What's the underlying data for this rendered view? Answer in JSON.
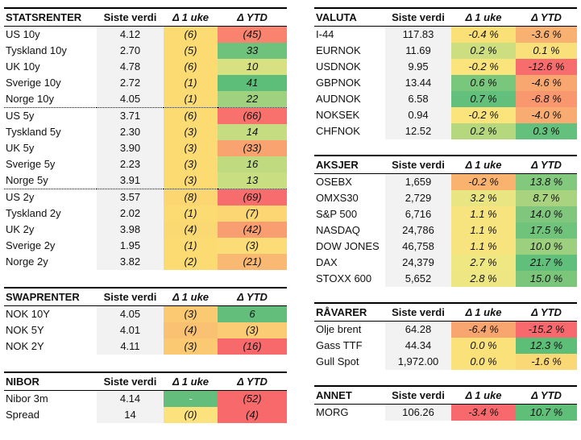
{
  "columns_header": {
    "value": "Siste verdi",
    "week": "Δ 1 uke",
    "ytd": "Δ YTD"
  },
  "gray_value_bg": "#F2F2F2",
  "palette": {
    "red": "#F8696B",
    "yellow": "#FFEB84",
    "green": "#63BE7B"
  },
  "tables": [
    {
      "id": "statsrenter",
      "title": "STATSRENTER",
      "column": "left",
      "rows": [
        {
          "label": "US 10y",
          "value": "4.12",
          "week": "(6)",
          "week_bg": "#FCDB72",
          "ytd": "(45)",
          "ytd_bg": "#F9836E"
        },
        {
          "label": "Tyskland 10y",
          "value": "2.70",
          "week": "(5)",
          "week_bg": "#FCDB72",
          "ytd": "33",
          "ytd_bg": "#6EC27B"
        },
        {
          "label": "UK 10y",
          "value": "4.78",
          "week": "(6)",
          "week_bg": "#FCDB72",
          "ytd": "10",
          "ytd_bg": "#D8E182"
        },
        {
          "label": "Sverige 10y",
          "value": "2.72",
          "week": "(1)",
          "week_bg": "#FCDB72",
          "ytd": "41",
          "ytd_bg": "#5CBE79"
        },
        {
          "label": "Norge 10y",
          "value": "4.05",
          "week": "(1)",
          "week_bg": "#FCDB72",
          "ytd": "22",
          "ytd_bg": "#A0D17E",
          "sep_after": true
        },
        {
          "label": "US 5y",
          "value": "3.71",
          "week": "(6)",
          "week_bg": "#FCDB72",
          "ytd": "(66)",
          "ytd_bg": "#F8716D"
        },
        {
          "label": "Tyskland 5y",
          "value": "2.30",
          "week": "(3)",
          "week_bg": "#FCDB72",
          "ytd": "14",
          "ytd_bg": "#C6DC80"
        },
        {
          "label": "UK 5y",
          "value": "3.90",
          "week": "(3)",
          "week_bg": "#FCDB72",
          "ytd": "(33)",
          "ytd_bg": "#F9A470"
        },
        {
          "label": "Sverige 5y",
          "value": "2.23",
          "week": "(3)",
          "week_bg": "#FCDB72",
          "ytd": "16",
          "ytd_bg": "#C0DA7F"
        },
        {
          "label": "Norge 5y",
          "value": "3.91",
          "week": "(3)",
          "week_bg": "#FCDB72",
          "ytd": "13",
          "ytd_bg": "#C9DD81",
          "sep_after": true
        },
        {
          "label": "US 2y",
          "value": "3.57",
          "week": "(8)",
          "week_bg": "#FBD671",
          "ytd": "(69)",
          "ytd_bg": "#F76C6C"
        },
        {
          "label": "Tyskland 2y",
          "value": "2.02",
          "week": "(1)",
          "week_bg": "#FCDB72",
          "ytd": "(7)",
          "ytd_bg": "#FBD673"
        },
        {
          "label": "UK 2y",
          "value": "3.98",
          "week": "(4)",
          "week_bg": "#FBD972",
          "ytd": "(42)",
          "ytd_bg": "#F99E70"
        },
        {
          "label": "Sverige 2y",
          "value": "1.95",
          "week": "(1)",
          "week_bg": "#FCDB72",
          "ytd": "(3)",
          "ytd_bg": "#FBDC76"
        },
        {
          "label": "Norge 2y",
          "value": "3.82",
          "week": "(2)",
          "week_bg": "#FCDB72",
          "ytd": "(21)",
          "ytd_bg": "#FAB973"
        }
      ]
    },
    {
      "id": "swaprenter",
      "title": "SWAPRENTER",
      "column": "left",
      "rows": [
        {
          "label": "NOK 10Y",
          "value": "4.05",
          "week": "(3)",
          "week_bg": "#FBC972",
          "ytd": "6",
          "ytd_bg": "#63BE7B"
        },
        {
          "label": "NOK 5Y",
          "value": "4.01",
          "week": "(4)",
          "week_bg": "#FAC172",
          "ytd": "(3)",
          "ytd_bg": "#FBCC74"
        },
        {
          "label": "NOK 2Y",
          "value": "4.11",
          "week": "(3)",
          "week_bg": "#FBC972",
          "ytd": "(16)",
          "ytd_bg": "#F8696B"
        }
      ]
    },
    {
      "id": "nibor",
      "title": "NIBOR",
      "column": "left",
      "rows": [
        {
          "label": "Nibor 3m",
          "value": "4.14",
          "week": "-",
          "week_bg": "#63BE7B",
          "week_fg": "#FFFFFF",
          "ytd": "(52)",
          "ytd_bg": "#F8696B"
        },
        {
          "label": "Spread",
          "value": "14",
          "week": "(0)",
          "week_bg": "#FBE27C",
          "ytd": "(4)",
          "ytd_bg": "#F8696B"
        }
      ]
    },
    {
      "id": "valuta",
      "title": "VALUTA",
      "column": "right",
      "rows": [
        {
          "label": "I-44",
          "value": "117.83",
          "week": "-0.4 %",
          "week_bg": "#FAE077",
          "ytd": "-3.6 %",
          "ytd_bg": "#F9B172"
        },
        {
          "label": "EURNOK",
          "value": "11.69",
          "week": "0.2 %",
          "week_bg": "#CDDE80",
          "ytd": "0.1 %",
          "ytd_bg": "#F9E07B"
        },
        {
          "label": "USDNOK",
          "value": "9.95",
          "week": "-0.2 %",
          "week_bg": "#FAE47B",
          "ytd": "-12.6 %",
          "ytd_bg": "#F76C6C"
        },
        {
          "label": "GBPNOK",
          "value": "13.44",
          "week": "0.6 %",
          "week_bg": "#79C67D",
          "ytd": "-4.6 %",
          "ytd_bg": "#F9A770"
        },
        {
          "label": "AUDNOK",
          "value": "6.58",
          "week": "0.7 %",
          "week_bg": "#62C07C",
          "ytd": "-6.8 %",
          "ytd_bg": "#F9976F"
        },
        {
          "label": "NOKSEK",
          "value": "0.94",
          "week": "-0.2 %",
          "week_bg": "#FAE47B",
          "ytd": "-4.0 %",
          "ytd_bg": "#F9AC71"
        },
        {
          "label": "CHFNOK",
          "value": "12.52",
          "week": "0.2 %",
          "week_bg": "#B5D77E",
          "ytd": "0.3 %",
          "ytd_bg": "#64C07D"
        }
      ]
    },
    {
      "id": "aksjer",
      "title": "AKSJER",
      "column": "right",
      "rows": [
        {
          "label": "OSEBX",
          "value": "1,659",
          "week": "-0.2 %",
          "week_bg": "#FAB26F",
          "ytd": "13.8 %",
          "ytd_bg": "#82C87D"
        },
        {
          "label": "OMXS30",
          "value": "2,729",
          "week": "3.2 %",
          "week_bg": "#E9E583",
          "ytd": "8.7 %",
          "ytd_bg": "#A9D37F"
        },
        {
          "label": "S&P 500",
          "value": "6,716",
          "week": "1.1 %",
          "week_bg": "#F7E47E",
          "ytd": "14.0 %",
          "ytd_bg": "#80C77D"
        },
        {
          "label": "NASDAQ",
          "value": "24,786",
          "week": "1.1 %",
          "week_bg": "#F7E47E",
          "ytd": "17.5 %",
          "ytd_bg": "#6FC37B"
        },
        {
          "label": "DOW JONES",
          "value": "46,758",
          "week": "1.1 %",
          "week_bg": "#F7E47E",
          "ytd": "10.0 %",
          "ytd_bg": "#9DD07E"
        },
        {
          "label": "DAX",
          "value": "24,379",
          "week": "2.7 %",
          "week_bg": "#EFE782",
          "ytd": "21.7 %",
          "ytd_bg": "#5FBF7B"
        },
        {
          "label": "STOXX 600",
          "value": "5,652",
          "week": "2.8 %",
          "week_bg": "#EDE682",
          "ytd": "15.0 %",
          "ytd_bg": "#7CC67C"
        }
      ]
    },
    {
      "id": "ravarer",
      "title": "RÅVARER",
      "column": "right",
      "rows": [
        {
          "label": "Olje brent",
          "value": "64.28",
          "week": "-6.4 %",
          "week_bg": "#F9A56F",
          "ytd": "-15.2 %",
          "ytd_bg": "#F7696C"
        },
        {
          "label": "Gass TTF",
          "value": "44.34",
          "week": "0.0 %",
          "week_bg": "#FBE17A",
          "ytd": "12.3 %",
          "ytd_bg": "#5DBE77"
        },
        {
          "label": "Gull Spot",
          "value": "1,972.00",
          "week": "0.0 %",
          "week_bg": "#FBE17A",
          "ytd": "-1.6 %",
          "ytd_bg": "#FAD875"
        }
      ]
    },
    {
      "id": "annet",
      "title": "ANNET",
      "column": "right",
      "rows": [
        {
          "label": "MORG",
          "value": "106.26",
          "week": "-3.4 %",
          "week_bg": "#F7696C",
          "ytd": "10.7 %",
          "ytd_bg": "#5FBF78"
        }
      ]
    }
  ]
}
